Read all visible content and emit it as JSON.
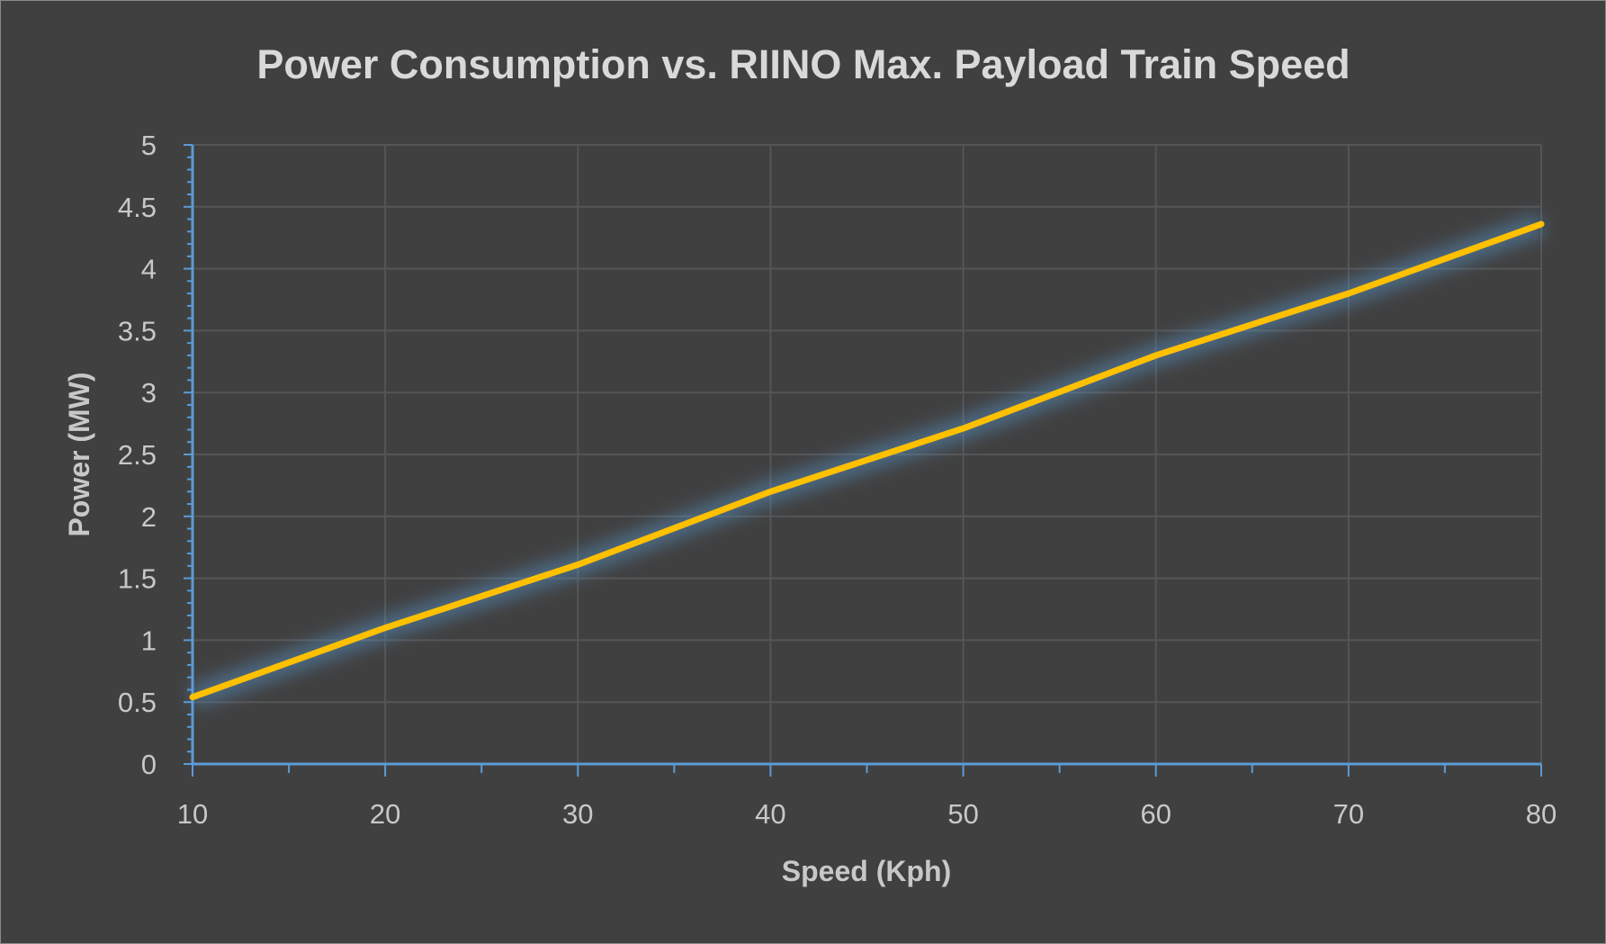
{
  "chart_data": {
    "type": "line",
    "title": "Power Consumption vs. RIINO Max. Payload Train Speed",
    "xlabel": "Speed (Kph)",
    "ylabel": "Power (MW)",
    "xlim": [
      10,
      80
    ],
    "ylim": [
      0,
      5
    ],
    "x_ticks": [
      "10",
      "20",
      "30",
      "40",
      "50",
      "60",
      "70",
      "80"
    ],
    "y_ticks": [
      "0",
      "0.5",
      "1",
      "1.5",
      "2",
      "2.5",
      "3",
      "3.5",
      "4",
      "4.5",
      "5"
    ],
    "grid": true,
    "legend": "none",
    "series": [
      {
        "name": "Power",
        "color": "#FFC000",
        "x": [
          10,
          20,
          30,
          40,
          50,
          60,
          70,
          80
        ],
        "values": [
          0.54,
          1.1,
          1.61,
          2.2,
          2.71,
          3.3,
          3.8,
          4.36
        ]
      }
    ],
    "colors": {
      "background": "#404040",
      "axis": "#5B9BD5",
      "grid": "#555555",
      "glow": "#5B9BD5"
    }
  }
}
